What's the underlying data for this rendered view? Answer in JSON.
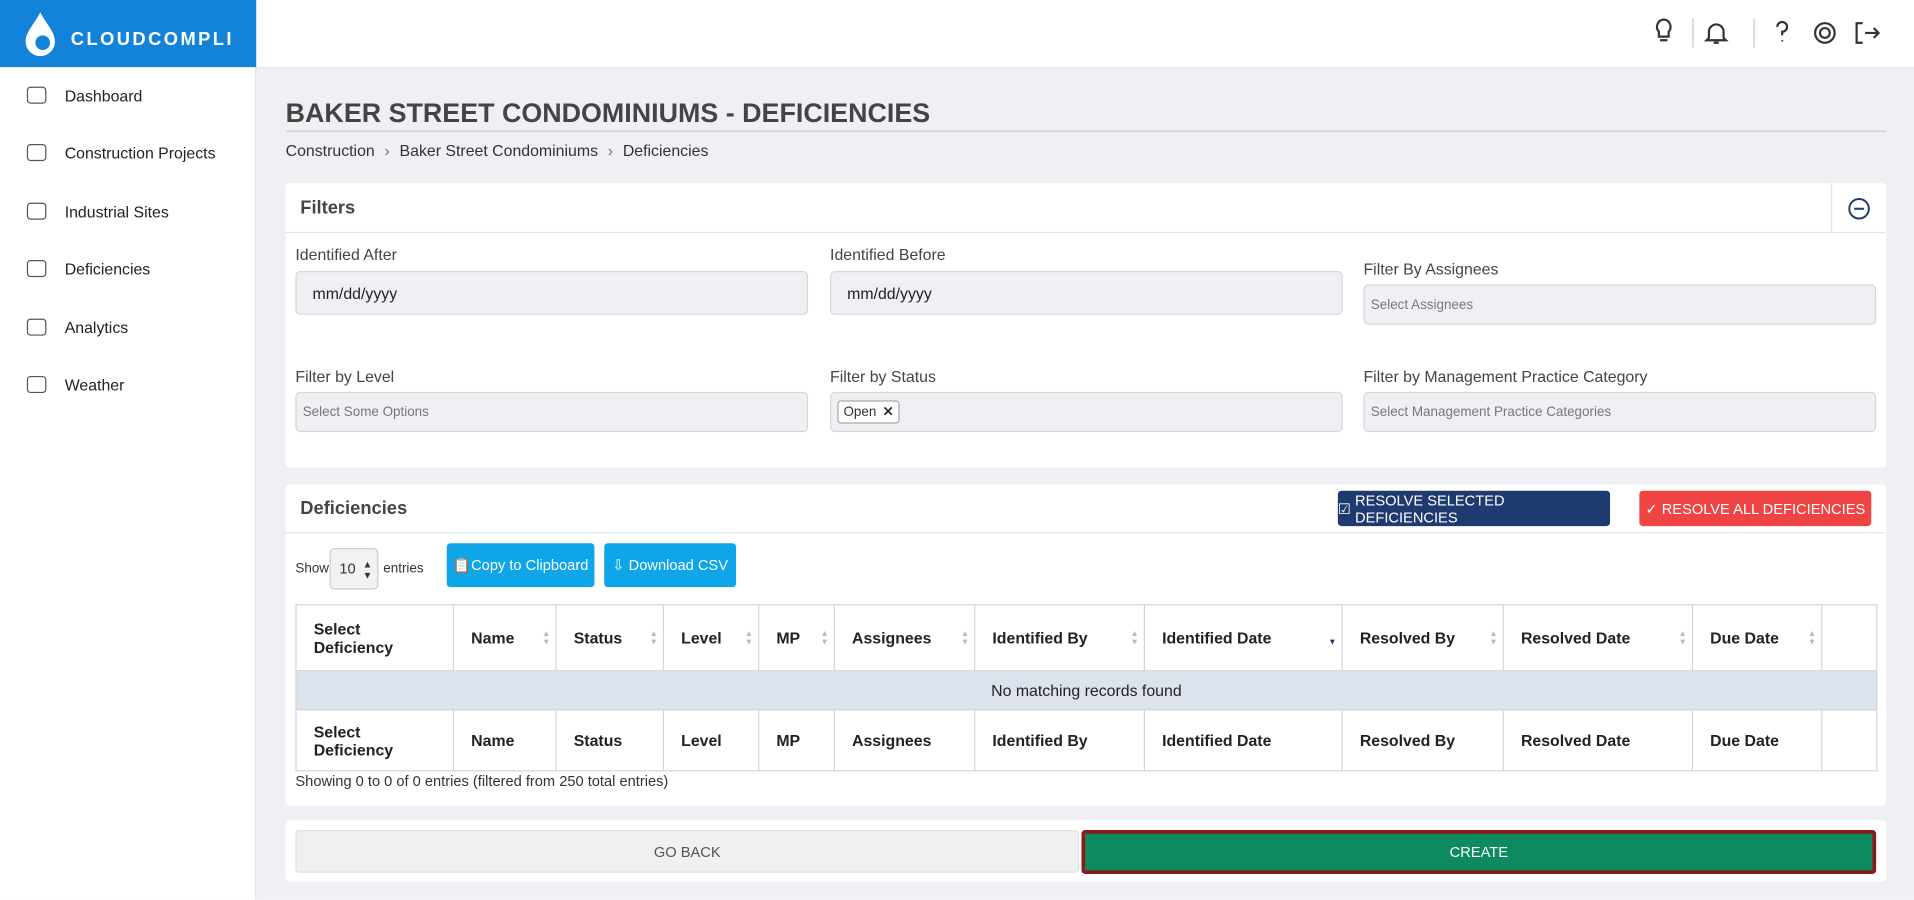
{
  "brand": "CLOUDCOMPLI",
  "nav": [
    "Dashboard",
    "Construction Projects",
    "Industrial Sites",
    "Deficiencies",
    "Analytics",
    "Weather"
  ],
  "page": {
    "title": "BAKER STREET CONDOMINIUMS - DEFICIENCIES",
    "breadcrumb": [
      "Construction",
      "Baker Street Condominiums",
      "Deficiencies"
    ]
  },
  "filters": {
    "title": "Filters",
    "fields": [
      {
        "label": "Identified After",
        "value": "mm/dd/yyyy"
      },
      {
        "label": "Identified Before",
        "value": "mm/dd/yyyy"
      },
      {
        "label": "Filter By Assignees",
        "placeholder": "Select Assignees"
      },
      {
        "label": "Filter by Level",
        "placeholder": "Select Some Options"
      },
      {
        "label": "Filter by Status",
        "tag": "Open"
      },
      {
        "label": "Filter by Management Practice Category",
        "placeholder": "Select Management Practice Categories"
      }
    ]
  },
  "deficiencies": {
    "title": "Deficiencies",
    "resolve_selected": "RESOLVE SELECTED DEFICIENCIES",
    "resolve_all": "RESOLVE ALL DEFICIENCIES",
    "show": "Show",
    "page_size": "10",
    "entries": "entries",
    "copy": "Copy to Clipboard",
    "download": "Download CSV",
    "columns": [
      "Select Deficiency",
      "Name",
      "Status",
      "Level",
      "MP",
      "Assignees",
      "Identified By",
      "Identified Date",
      "Resolved By",
      "Resolved Date",
      "Due Date"
    ],
    "empty": "No matching records found",
    "info": "Showing 0 to 0 of 0 entries (filtered from 250 total entries)"
  },
  "actions": {
    "back": "GO BACK",
    "create": "CREATE"
  }
}
